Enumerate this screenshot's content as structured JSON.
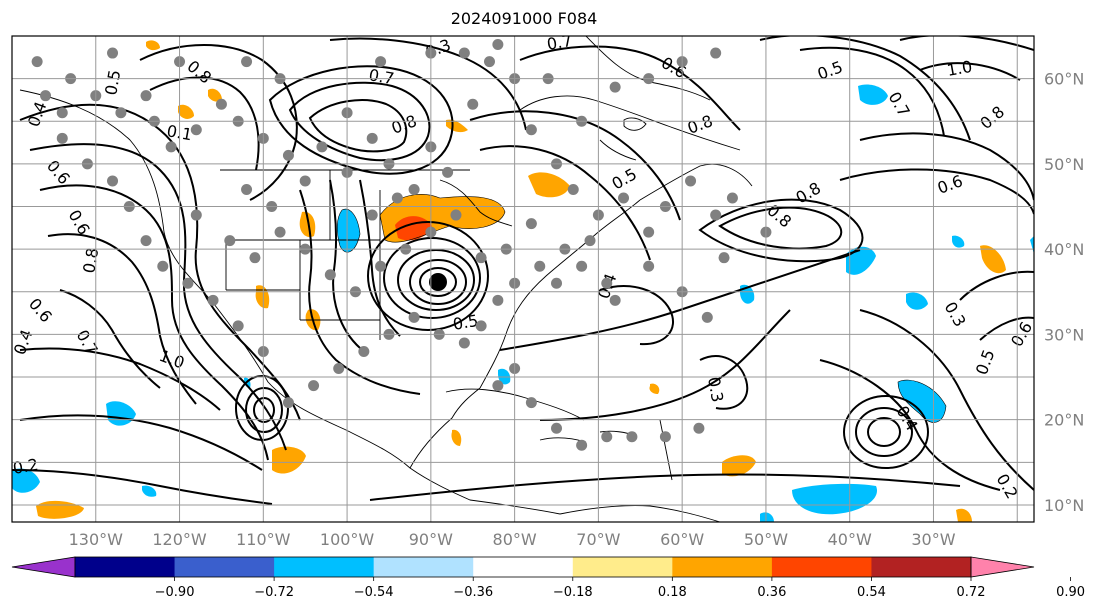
{
  "title": "2024091000 F084",
  "map": {
    "projection": "plate-carree",
    "lon_range": [
      -140,
      -18
    ],
    "lat_range": [
      8,
      65
    ],
    "grid": true,
    "lon_ticks": [
      "130°W",
      "120°W",
      "110°W",
      "100°W",
      "90°W",
      "80°W",
      "70°W",
      "60°W",
      "50°W",
      "40°W",
      "30°W"
    ],
    "lat_ticks": [
      "60°N",
      "50°N",
      "40°N",
      "30°N",
      "20°N",
      "10°N"
    ],
    "storm_center_marker": {
      "lon": -90,
      "lat": 36.5
    },
    "contour_labels": [
      "0.3",
      "0.7",
      "0.6",
      "0.8",
      "0.5",
      "0.4",
      "1.0",
      "0.6",
      "0.8",
      "0.7",
      "0.8",
      "0.6",
      "0.8",
      "0.4",
      "0.5",
      "0.6",
      "0.7",
      "0.8",
      "0.6",
      "0.4",
      "1.0",
      "0.5",
      "0.3",
      "0.5",
      "0.6",
      "0.4",
      "0.3",
      "0.2",
      "0.2",
      "0.8",
      "0.7",
      "0.8",
      "0.1",
      "0.5"
    ]
  },
  "colorbar": {
    "ticks": [
      "−0.90",
      "−0.72",
      "−0.54",
      "−0.36",
      "−0.18",
      "0.18",
      "0.36",
      "0.54",
      "0.72",
      "0.90"
    ],
    "colors": [
      "#9932cc",
      "#00008b",
      "#3a5fcd",
      "#00bfff",
      "#b0e2ff",
      "#ffffff",
      "#ffec8b",
      "#ffa500",
      "#ff4500",
      "#b22222",
      "#ff82ab"
    ],
    "extend": "both"
  }
}
